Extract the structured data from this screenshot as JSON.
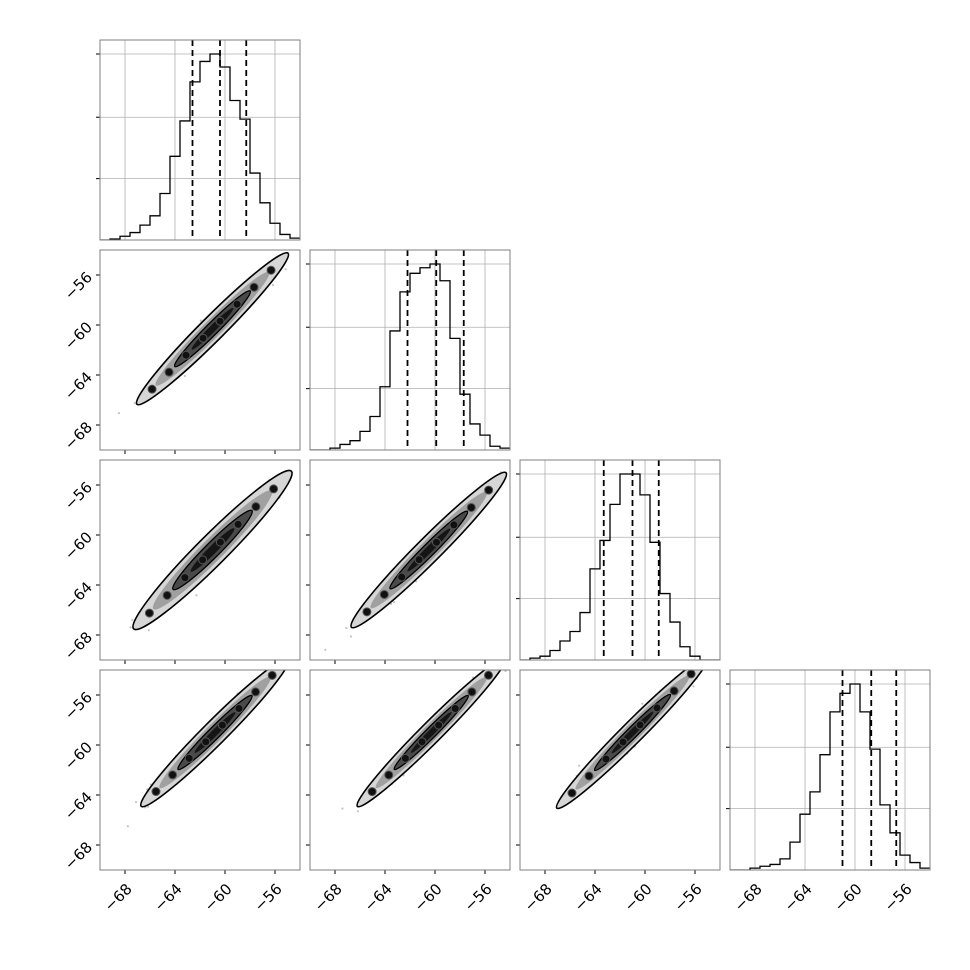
{
  "chart_data": {
    "type": "corner",
    "n_params": 4,
    "tick_values": [
      -68,
      -64,
      -60,
      -56
    ],
    "tick_labels": [
      "−68",
      "−64",
      "−60",
      "−56"
    ],
    "axis_range": [
      -70.0,
      -54.0
    ],
    "grid": true,
    "diagonal": [
      {
        "type": "histogram",
        "bin_edges": [
          -70.0,
          -69.2,
          -68.4,
          -67.6,
          -66.8,
          -66.0,
          -65.2,
          -64.4,
          -63.6,
          -62.8,
          -62.0,
          -61.2,
          -60.4,
          -59.6,
          -58.8,
          -58.0,
          -57.2,
          -56.4,
          -55.6,
          -54.8,
          -54.0
        ],
        "counts": [
          0,
          0.5,
          2,
          4,
          8,
          13,
          25,
          45,
          64,
          85,
          96,
          100,
          93,
          75,
          65,
          36,
          20,
          9,
          3,
          1
        ],
        "quantiles": [
          -62.6,
          -60.4,
          -58.3
        ]
      },
      {
        "type": "histogram",
        "bin_edges": [
          -70.0,
          -69.2,
          -68.4,
          -67.6,
          -66.8,
          -66.0,
          -65.2,
          -64.4,
          -63.6,
          -62.8,
          -62.0,
          -61.2,
          -60.4,
          -59.6,
          -58.8,
          -58.0,
          -57.2,
          -56.4,
          -55.6,
          -54.8,
          -54.0
        ],
        "counts": [
          0,
          0,
          1,
          3,
          5,
          10,
          18,
          34,
          64,
          85,
          95,
          98,
          100,
          91,
          60,
          30,
          14,
          8,
          2,
          1
        ],
        "quantiles": [
          -62.2,
          -59.9,
          -57.7
        ]
      },
      {
        "type": "histogram",
        "bin_edges": [
          -70.0,
          -69.2,
          -68.4,
          -67.6,
          -66.8,
          -66.0,
          -65.2,
          -64.4,
          -63.6,
          -62.8,
          -62.0,
          -61.2,
          -60.4,
          -59.6,
          -58.8,
          -58.0,
          -57.2,
          -56.4,
          -55.6,
          -54.8,
          -54.0
        ],
        "counts": [
          0,
          1,
          2,
          5,
          10,
          15,
          25,
          48,
          63,
          82,
          98,
          98,
          87,
          62,
          35,
          20,
          7,
          2,
          0,
          0
        ],
        "quantiles": [
          -63.3,
          -61.0,
          -58.9
        ]
      },
      {
        "type": "histogram",
        "bin_edges": [
          -70.0,
          -69.2,
          -68.4,
          -67.6,
          -66.8,
          -66.0,
          -65.2,
          -64.4,
          -63.6,
          -62.8,
          -62.0,
          -61.2,
          -60.4,
          -59.6,
          -58.8,
          -58.0,
          -57.2,
          -56.4,
          -55.6,
          -54.8,
          -54.0
        ],
        "counts": [
          0,
          0,
          1,
          2,
          3,
          6,
          15,
          30,
          42,
          62,
          85,
          95,
          100,
          85,
          65,
          35,
          20,
          8,
          4,
          1
        ],
        "quantiles": [
          -61.0,
          -58.7,
          -56.7
        ]
      }
    ],
    "offdiagonal_contours": [
      {
        "row": 1,
        "col": 0,
        "mean": [
          -61.0,
          -60.3
        ],
        "sd": 2.15,
        "corr": 0.975
      },
      {
        "row": 2,
        "col": 0,
        "mean": [
          -61.0,
          -61.2
        ],
        "sd": 2.25,
        "corr": 0.965
      },
      {
        "row": 2,
        "col": 1,
        "mean": [
          -60.5,
          -61.2
        ],
        "sd": 2.2,
        "corr": 0.975
      },
      {
        "row": 3,
        "col": 0,
        "mean": [
          -60.8,
          -59.0
        ],
        "sd": 2.1,
        "corr": 0.975
      },
      {
        "row": 3,
        "col": 1,
        "mean": [
          -60.3,
          -59.0
        ],
        "sd": 2.1,
        "corr": 0.98
      },
      {
        "row": 3,
        "col": 2,
        "mean": [
          -61.0,
          -59.0
        ],
        "sd": 2.15,
        "corr": 0.98
      }
    ]
  }
}
